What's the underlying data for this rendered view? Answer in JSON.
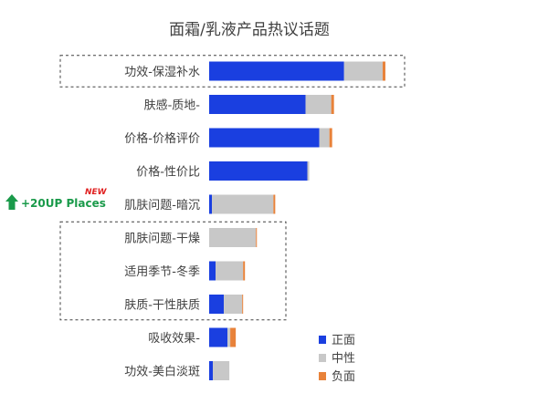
{
  "chart_data": {
    "type": "bar",
    "orientation": "horizontal",
    "stacked": true,
    "title": "面霜/乳液产品热议话题",
    "categories": [
      "功效-保湿补水",
      "肤感-质地-",
      "价格-价格评价",
      "价格-性价比",
      "肌肤问题-暗沉",
      "肌肤问题-干燥",
      "适用季节-冬季",
      "肤质-干性肤质",
      "吸收效果-",
      "功效-美白淡斑"
    ],
    "series": [
      {
        "name": "正面",
        "color": "#1a3fe0",
        "values": [
          147,
          105,
          120,
          107,
          3,
          0,
          7,
          16,
          20,
          4
        ]
      },
      {
        "name": "中性",
        "color": "#c8c8c8",
        "values": [
          42,
          28,
          11,
          2,
          67,
          51,
          30,
          20,
          3,
          18
        ]
      },
      {
        "name": "负面",
        "color": "#e8823a",
        "values": [
          3,
          3,
          3,
          0,
          2,
          1,
          2,
          1,
          6,
          0
        ]
      }
    ],
    "xlim": [
      0,
      200
    ],
    "grid": false,
    "legend_position": "bottom-right",
    "highlight_groups": [
      {
        "categories": [
          "功效-保湿补水"
        ]
      },
      {
        "categories": [
          "肌肤问题-干燥",
          "适用季节-冬季",
          "肤质-干性肤质"
        ]
      }
    ],
    "annotations": [
      {
        "category": "肌肤问题-暗沉",
        "text": "+20UP Places",
        "badge": "NEW",
        "icon": "up-arrow-icon"
      }
    ]
  }
}
